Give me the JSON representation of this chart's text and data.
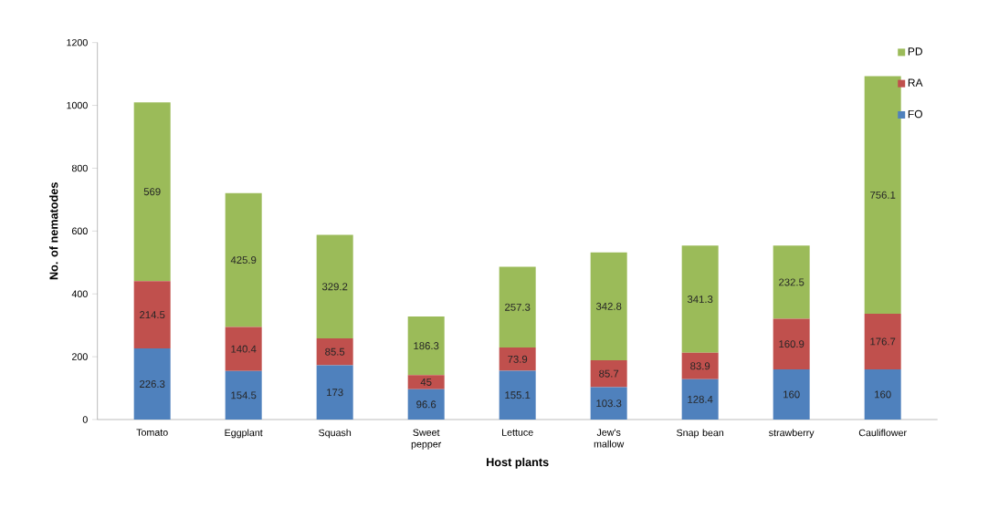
{
  "chart_data": {
    "type": "bar",
    "stacked": true,
    "xlabel": "Host plants",
    "ylabel": "No. of nematodes",
    "categories": [
      "Tomato",
      "Eggplant",
      "Squash",
      "Sweet pepper",
      "Lettuce",
      "Jew's mallow",
      "Snap bean",
      "strawberry",
      "Cauliflower"
    ],
    "series": [
      {
        "name": "FO",
        "color": "#4f81bd",
        "values": [
          226.3,
          154.5,
          173,
          96.6,
          155.1,
          103.3,
          128.4,
          160,
          160
        ]
      },
      {
        "name": "RA",
        "color": "#c0504d",
        "values": [
          214.5,
          140.4,
          85.5,
          45,
          73.9,
          85.7,
          83.9,
          160.9,
          176.7
        ]
      },
      {
        "name": "PD",
        "color": "#9bbb59",
        "values": [
          569,
          425.9,
          329.2,
          186.3,
          257.3,
          342.8,
          341.3,
          232.5,
          756.1
        ]
      }
    ],
    "ylim": [
      0,
      1200
    ],
    "yticks": [
      0,
      200,
      400,
      600,
      800,
      1000,
      1200
    ],
    "data_labels": true,
    "legend": "top right"
  }
}
